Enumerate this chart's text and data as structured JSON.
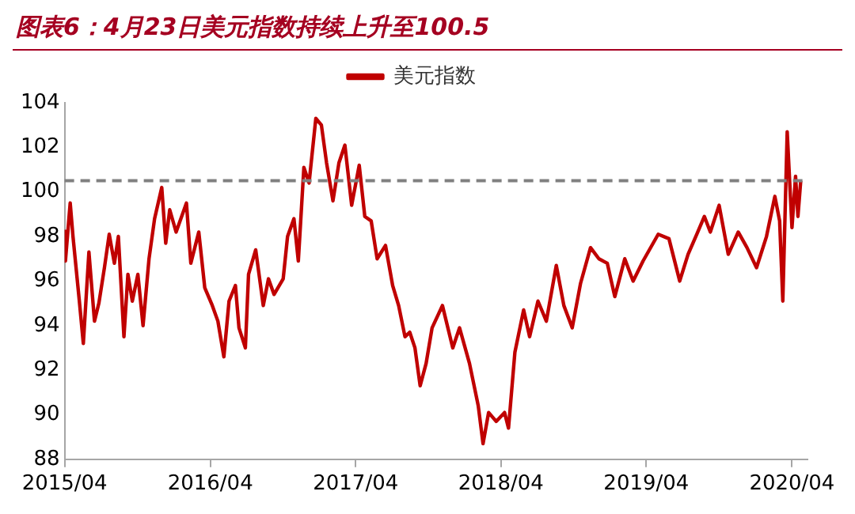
{
  "chart_data": {
    "type": "line",
    "title": "图表6：4月23日美元指数持续上升至100.5",
    "x": [
      "2015-04-01",
      "2015-04-03",
      "2015-04-15",
      "2015-04-22",
      "2015-05-08",
      "2015-05-18",
      "2015-06-01",
      "2015-06-15",
      "2015-06-26",
      "2015-07-10",
      "2015-07-22",
      "2015-08-04",
      "2015-08-14",
      "2015-08-28",
      "2015-09-07",
      "2015-09-18",
      "2015-10-02",
      "2015-10-15",
      "2015-10-30",
      "2015-11-13",
      "2015-12-01",
      "2015-12-11",
      "2015-12-21",
      "2016-01-06",
      "2016-02-01",
      "2016-02-12",
      "2016-03-03",
      "2016-03-18",
      "2016-04-06",
      "2016-04-20",
      "2016-05-05",
      "2016-05-18",
      "2016-06-03",
      "2016-06-12",
      "2016-06-28",
      "2016-07-06",
      "2016-07-24",
      "2016-08-12",
      "2016-08-25",
      "2016-09-08",
      "2016-10-01",
      "2016-10-12",
      "2016-10-28",
      "2016-11-08",
      "2016-11-22",
      "2016-12-05",
      "2016-12-22",
      "2017-01-05",
      "2017-01-18",
      "2017-02-03",
      "2017-02-18",
      "2017-03-05",
      "2017-03-22",
      "2017-04-10",
      "2017-04-24",
      "2017-05-10",
      "2017-05-25",
      "2017-06-15",
      "2017-07-03",
      "2017-07-18",
      "2017-08-03",
      "2017-08-15",
      "2017-08-28",
      "2017-09-10",
      "2017-09-25",
      "2017-10-10",
      "2017-11-05",
      "2017-12-01",
      "2017-12-18",
      "2018-01-12",
      "2018-02-03",
      "2018-02-15",
      "2018-03-01",
      "2018-03-20",
      "2018-04-10",
      "2018-04-20",
      "2018-05-06",
      "2018-05-28",
      "2018-06-12",
      "2018-07-03",
      "2018-07-24",
      "2018-08-18",
      "2018-09-06",
      "2018-09-27",
      "2018-10-18",
      "2018-11-12",
      "2018-12-03",
      "2018-12-24",
      "2019-01-12",
      "2019-02-06",
      "2019-02-27",
      "2019-03-24",
      "2019-05-01",
      "2019-05-28",
      "2019-06-24",
      "2019-07-15",
      "2019-08-06",
      "2019-08-25",
      "2019-09-09",
      "2019-10-01",
      "2019-10-24",
      "2019-11-18",
      "2019-12-10",
      "2020-01-03",
      "2020-01-28",
      "2020-02-18",
      "2020-03-01",
      "2020-03-09",
      "2020-03-20",
      "2020-04-01",
      "2020-04-10",
      "2020-04-16",
      "2020-04-23"
    ],
    "series": [
      {
        "name": "美元指数",
        "color": "#c00000",
        "values": [
          98.3,
          96.9,
          99.5,
          98.0,
          95.1,
          93.2,
          97.3,
          94.2,
          95.0,
          96.6,
          98.1,
          96.8,
          98.0,
          93.5,
          96.3,
          95.1,
          96.3,
          94.0,
          97.0,
          98.8,
          100.2,
          97.7,
          99.2,
          98.2,
          99.5,
          96.8,
          98.2,
          95.7,
          94.9,
          94.2,
          92.6,
          95.1,
          95.8,
          93.9,
          93.0,
          96.3,
          97.4,
          94.9,
          96.1,
          95.4,
          96.1,
          98.0,
          98.8,
          96.9,
          101.1,
          100.4,
          103.3,
          103.0,
          101.3,
          99.6,
          101.3,
          102.1,
          99.4,
          101.2,
          98.9,
          98.7,
          97.0,
          97.6,
          95.8,
          94.9,
          93.5,
          93.7,
          93.0,
          91.3,
          92.3,
          93.9,
          94.9,
          93.0,
          93.9,
          92.3,
          90.4,
          88.7,
          90.1,
          89.7,
          90.1,
          89.4,
          92.8,
          94.7,
          93.5,
          95.1,
          94.2,
          96.7,
          94.9,
          93.9,
          95.9,
          97.5,
          97.0,
          96.8,
          95.3,
          97.0,
          96.0,
          96.9,
          98.1,
          97.9,
          96.0,
          97.2,
          98.1,
          98.9,
          98.2,
          99.4,
          97.2,
          98.2,
          97.5,
          96.6,
          98.0,
          99.8,
          98.7,
          95.1,
          102.7,
          98.4,
          100.7,
          98.9,
          100.5
        ]
      }
    ],
    "xlim": [
      "2015-04-01",
      "2020-05-10"
    ],
    "xticks": [
      {
        "value": "2015-04",
        "label": "2015/04"
      },
      {
        "value": "2016-04",
        "label": "2016/04"
      },
      {
        "value": "2017-04",
        "label": "2017/04"
      },
      {
        "value": "2018-04",
        "label": "2018/04"
      },
      {
        "value": "2019-04",
        "label": "2019/04"
      },
      {
        "value": "2020-04",
        "label": "2020/04"
      }
    ],
    "ylim": [
      88,
      104
    ],
    "yticks": [
      88,
      90,
      92,
      94,
      96,
      98,
      100,
      102,
      104
    ],
    "ref_lines": [
      {
        "axis": "y",
        "value": 100.5,
        "color": "#808080",
        "line_style": "dashed"
      }
    ],
    "legend": "top",
    "grid": false,
    "marker": "none",
    "line_style": "solid"
  }
}
